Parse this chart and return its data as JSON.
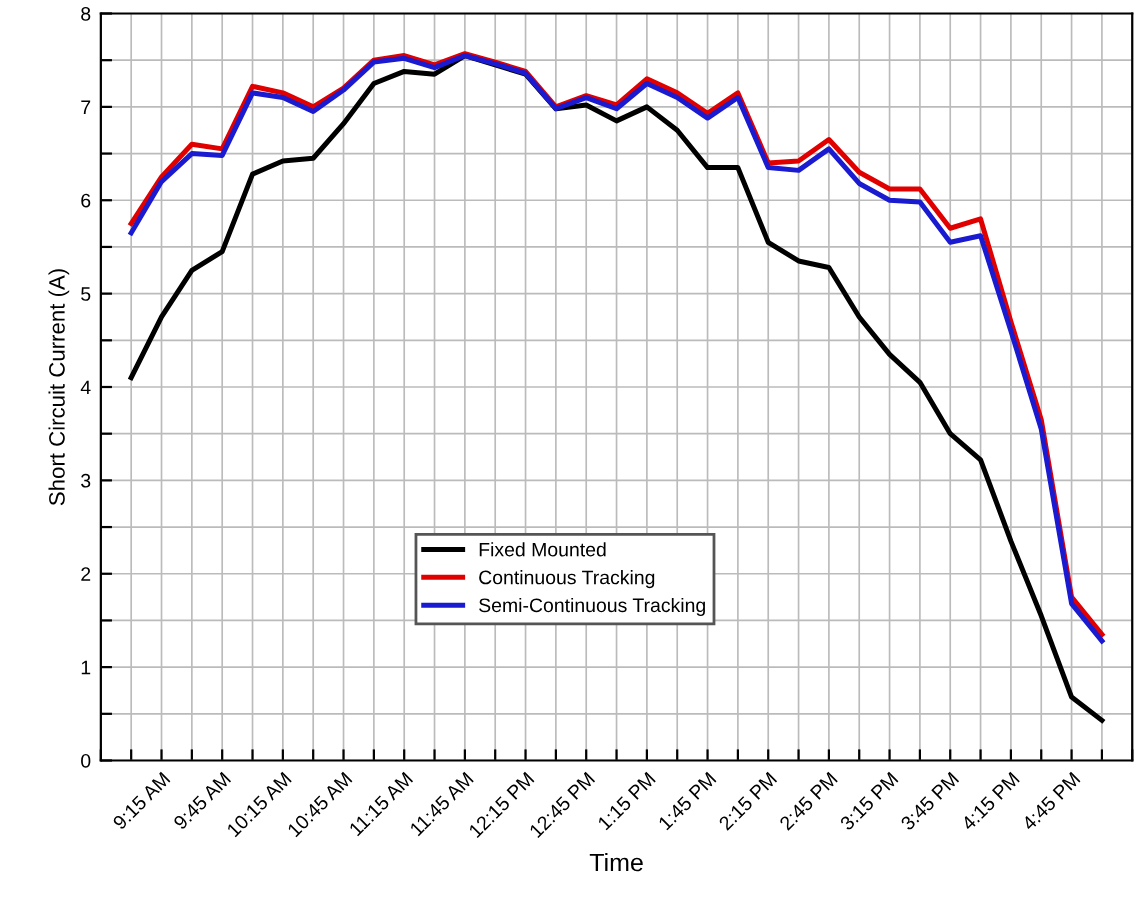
{
  "chart_data": {
    "type": "line",
    "xlabel": "Time",
    "ylabel": "Short Circuit Current (A)",
    "x": [
      9.0,
      9.25,
      9.5,
      9.75,
      10.0,
      10.25,
      10.5,
      10.75,
      11.0,
      11.25,
      11.5,
      11.75,
      12.0,
      12.25,
      12.5,
      12.75,
      13.0,
      13.25,
      13.5,
      13.75,
      14.0,
      14.25,
      14.5,
      14.75,
      15.0,
      15.25,
      15.5,
      15.75,
      16.0,
      16.25,
      16.5,
      16.75,
      17.0
    ],
    "series": [
      {
        "name": "Fixed Mounted",
        "color": "#000000",
        "values": [
          4.1,
          4.75,
          5.25,
          5.45,
          6.28,
          6.42,
          6.45,
          6.82,
          7.25,
          7.38,
          7.35,
          7.55,
          7.45,
          7.35,
          6.98,
          7.02,
          6.85,
          7.0,
          6.75,
          6.35,
          6.35,
          5.55,
          5.35,
          5.28,
          4.75,
          4.35,
          4.05,
          3.5,
          3.22,
          2.35,
          1.55,
          0.68,
          0.43
        ]
      },
      {
        "name": "Continuous Tracking",
        "color": "#e00000",
        "values": [
          5.75,
          6.25,
          6.6,
          6.55,
          7.22,
          7.15,
          7.0,
          7.2,
          7.5,
          7.55,
          7.45,
          7.57,
          7.48,
          7.38,
          7.0,
          7.12,
          7.02,
          7.3,
          7.15,
          6.93,
          7.15,
          6.4,
          6.42,
          6.65,
          6.3,
          6.12,
          6.12,
          5.7,
          5.8,
          4.7,
          3.65,
          1.75,
          1.35
        ]
      },
      {
        "name": "Semi-Continuous Tracking",
        "color": "#1a1ad0",
        "values": [
          5.65,
          6.2,
          6.5,
          6.48,
          7.15,
          7.1,
          6.95,
          7.18,
          7.48,
          7.52,
          7.42,
          7.55,
          7.46,
          7.36,
          6.98,
          7.1,
          6.98,
          7.25,
          7.1,
          6.88,
          7.1,
          6.35,
          6.32,
          6.55,
          6.18,
          6.0,
          5.98,
          5.55,
          5.62,
          4.6,
          3.55,
          1.68,
          1.28
        ]
      }
    ],
    "xlim": [
      8.75,
      17.25
    ],
    "xticks": [
      {
        "value": 8.75,
        "label": null
      },
      {
        "value": 9.0,
        "label": null
      },
      {
        "value": 9.25,
        "label": "9:15 AM"
      },
      {
        "value": 9.5,
        "label": null
      },
      {
        "value": 9.75,
        "label": "9:45 AM"
      },
      {
        "value": 10.0,
        "label": null
      },
      {
        "value": 10.25,
        "label": "10:15 AM"
      },
      {
        "value": 10.5,
        "label": null
      },
      {
        "value": 10.75,
        "label": "10:45 AM"
      },
      {
        "value": 11.0,
        "label": null
      },
      {
        "value": 11.25,
        "label": "11:15 AM"
      },
      {
        "value": 11.5,
        "label": null
      },
      {
        "value": 11.75,
        "label": "11:45 AM"
      },
      {
        "value": 12.0,
        "label": null
      },
      {
        "value": 12.25,
        "label": "12:15 PM"
      },
      {
        "value": 12.5,
        "label": null
      },
      {
        "value": 12.75,
        "label": "12:45 PM"
      },
      {
        "value": 13.0,
        "label": null
      },
      {
        "value": 13.25,
        "label": "1:15 PM"
      },
      {
        "value": 13.5,
        "label": null
      },
      {
        "value": 13.75,
        "label": "1:45 PM"
      },
      {
        "value": 14.0,
        "label": null
      },
      {
        "value": 14.25,
        "label": "2:15 PM"
      },
      {
        "value": 14.5,
        "label": null
      },
      {
        "value": 14.75,
        "label": "2:45 PM"
      },
      {
        "value": 15.0,
        "label": null
      },
      {
        "value": 15.25,
        "label": "3:15 PM"
      },
      {
        "value": 15.5,
        "label": null
      },
      {
        "value": 15.75,
        "label": "3:45 PM"
      },
      {
        "value": 16.0,
        "label": null
      },
      {
        "value": 16.25,
        "label": "4:15 PM"
      },
      {
        "value": 16.5,
        "label": null
      },
      {
        "value": 16.75,
        "label": "4:45 PM"
      },
      {
        "value": 17.0,
        "label": null
      },
      {
        "value": 17.25,
        "label": null
      }
    ],
    "ylim": [
      0,
      8
    ],
    "yticks": [
      0,
      {
        "value": 0.5,
        "label": null
      },
      1,
      {
        "value": 1.5,
        "label": null
      },
      2,
      {
        "value": 2.5,
        "label": null
      },
      3,
      {
        "value": 3.5,
        "label": null
      },
      4,
      {
        "value": 4.5,
        "label": null
      },
      5,
      {
        "value": 5.5,
        "label": null
      },
      6,
      {
        "value": 6.5,
        "label": null
      },
      7,
      {
        "value": 7.5,
        "label": null
      },
      8
    ],
    "grid": true,
    "legend": "bottom",
    "line_style": "solid",
    "marker": "none"
  }
}
